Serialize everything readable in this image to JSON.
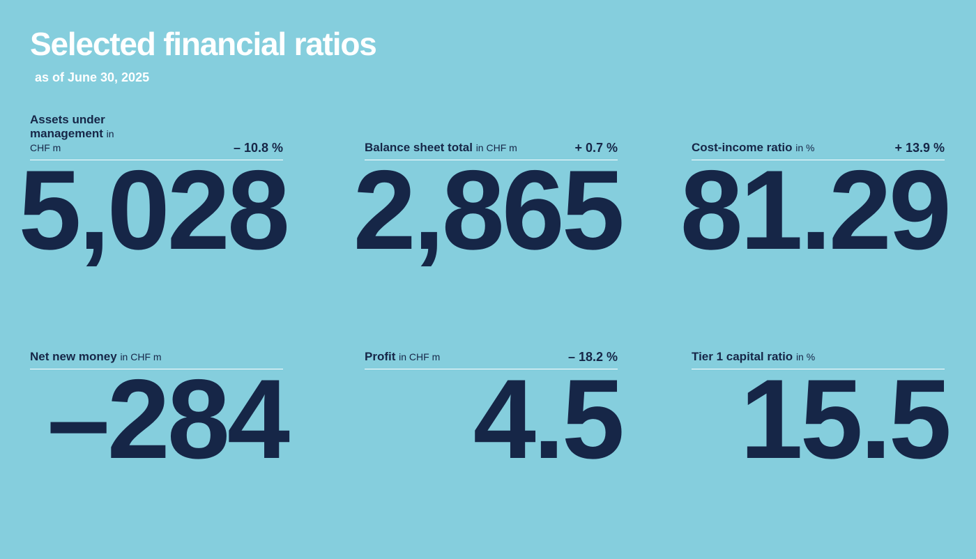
{
  "header": {
    "title": "Selected financial ratios",
    "subtitle": "as of June 30, 2025"
  },
  "metrics": [
    {
      "label": "Assets under management",
      "unit": "in CHF m",
      "change": "– 10.8 %",
      "value": "5,028"
    },
    {
      "label": "Balance sheet total",
      "unit": "in CHF m",
      "change": "+ 0.7 %",
      "value": "2,865"
    },
    {
      "label": "Cost-income ratio",
      "unit": "in %",
      "change": "+ 13.9 %",
      "value": "81.29"
    },
    {
      "label": "Net new money",
      "unit": "in CHF m",
      "change": "",
      "value": "–284"
    },
    {
      "label": "Profit",
      "unit": "in CHF m",
      "change": "– 18.2 %",
      "value": "4.5"
    },
    {
      "label": "Tier 1 capital ratio",
      "unit": "in %",
      "change": "",
      "value": "15.5"
    }
  ],
  "colors": {
    "background": "#85cedd",
    "text_dark": "#162647",
    "text_light": "#ffffff"
  }
}
